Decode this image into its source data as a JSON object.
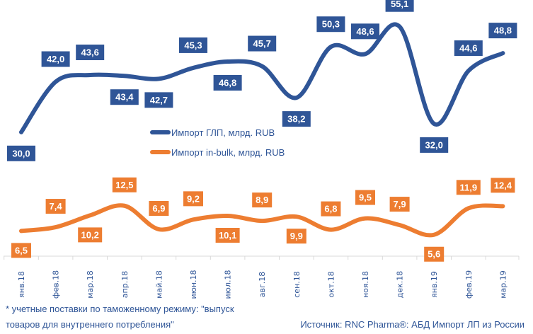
{
  "chart_data": {
    "type": "line",
    "categories": [
      "янв.18",
      "фев.18",
      "мар.18",
      "апр.18",
      "май.18",
      "июн.18",
      "июл.18",
      "авг.18",
      "сен.18",
      "окт.18",
      "ноя.18",
      "дек.18",
      "янв.19",
      "фев.19",
      "мар.19"
    ],
    "series": [
      {
        "name": "Импорт ГЛП, млрд. RUB",
        "color": "#2F5597",
        "values": [
          30.0,
          42.0,
          43.6,
          43.4,
          42.7,
          45.3,
          46.8,
          45.7,
          38.2,
          50.3,
          48.6,
          55.1,
          32.0,
          44.6,
          48.8
        ],
        "labels": [
          "30,0",
          "42,0",
          "43,6",
          "43,4",
          "42,7",
          "45,3",
          "46,8",
          "45,7",
          "38,2",
          "50,3",
          "48,6",
          "55,1",
          "32,0",
          "44,6",
          "48,8"
        ],
        "label_side": [
          "below",
          "above",
          "above",
          "below",
          "below",
          "above",
          "below",
          "above",
          "below",
          "above",
          "above",
          "above",
          "below",
          "above",
          "above"
        ]
      },
      {
        "name": "Импорт in-bulk, млрд. RUB",
        "color": "#ED7D31",
        "values": [
          6.5,
          7.4,
          10.2,
          12.5,
          6.9,
          9.2,
          10.1,
          8.9,
          9.9,
          6.8,
          9.5,
          7.9,
          5.6,
          11.9,
          12.4
        ],
        "labels": [
          "6,5",
          "7,4",
          "10,2",
          "12,5",
          "6,9",
          "9,2",
          "10,1",
          "8,9",
          "9,9",
          "6,8",
          "9,5",
          "7,9",
          "5,6",
          "11,9",
          "12,4"
        ],
        "label_side": [
          "below",
          "above",
          "below",
          "above",
          "above",
          "above",
          "below",
          "above",
          "below",
          "above",
          "above",
          "above",
          "below",
          "above",
          "above"
        ]
      }
    ],
    "ylim": [
      0,
      60
    ],
    "grid": false,
    "legend_placement": "center"
  },
  "footnote_line1": "* учетные поставки по таможенному режиму: \"выпуск",
  "footnote_line2": "товаров для внутреннего потребления\"",
  "source": "Источник: RNC Pharma®: АБД Импорт ЛП из России"
}
